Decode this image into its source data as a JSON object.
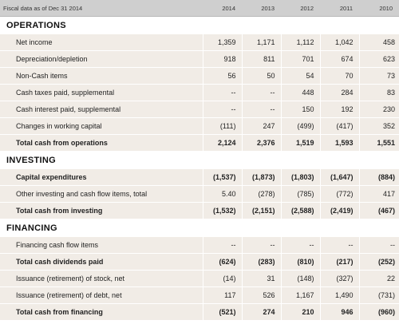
{
  "header": {
    "label": "Fiscal data as of Dec 31 2014",
    "years": [
      "2014",
      "2013",
      "2012",
      "2011",
      "2010"
    ]
  },
  "sections": [
    {
      "title": "OPERATIONS",
      "rows": [
        {
          "label": "Net income",
          "values": [
            "1,359",
            "1,171",
            "1,112",
            "1,042",
            "458"
          ],
          "total": false
        },
        {
          "label": "Depreciation/depletion",
          "values": [
            "918",
            "811",
            "701",
            "674",
            "623"
          ],
          "total": false
        },
        {
          "label": "Non-Cash items",
          "values": [
            "56",
            "50",
            "54",
            "70",
            "73"
          ],
          "total": false
        },
        {
          "label": "Cash taxes paid, supplemental",
          "values": [
            "--",
            "--",
            "448",
            "284",
            "83"
          ],
          "total": false
        },
        {
          "label": "Cash interest paid, supplemental",
          "values": [
            "--",
            "--",
            "150",
            "192",
            "230"
          ],
          "total": false
        },
        {
          "label": "Changes in working capital",
          "values": [
            "(111)",
            "247",
            "(499)",
            "(417)",
            "352"
          ],
          "total": false
        },
        {
          "label": "Total cash from operations",
          "values": [
            "2,124",
            "2,376",
            "1,519",
            "1,593",
            "1,551"
          ],
          "total": true
        }
      ]
    },
    {
      "title": "INVESTING",
      "rows": [
        {
          "label": "Capital expenditures",
          "values": [
            "(1,537)",
            "(1,873)",
            "(1,803)",
            "(1,647)",
            "(884)"
          ],
          "total": true
        },
        {
          "label": "Other investing and cash flow items, total",
          "values": [
            "5.40",
            "(278)",
            "(785)",
            "(772)",
            "417"
          ],
          "total": false
        },
        {
          "label": "Total cash from investing",
          "values": [
            "(1,532)",
            "(2,151)",
            "(2,588)",
            "(2,419)",
            "(467)"
          ],
          "total": true
        }
      ]
    },
    {
      "title": "FINANCING",
      "rows": [
        {
          "label": "Financing cash flow items",
          "values": [
            "--",
            "--",
            "--",
            "--",
            "--"
          ],
          "total": false
        },
        {
          "label": "Total cash dividends paid",
          "values": [
            "(624)",
            "(283)",
            "(810)",
            "(217)",
            "(252)"
          ],
          "total": true
        },
        {
          "label": "Issuance (retirement) of stock, net",
          "values": [
            "(14)",
            "31",
            "(148)",
            "(327)",
            "22"
          ],
          "total": false
        },
        {
          "label": "Issuance (retirement) of debt, net",
          "values": [
            "117",
            "526",
            "1,167",
            "1,490",
            "(731)"
          ],
          "total": false
        },
        {
          "label": "Total cash from financing",
          "values": [
            "(521)",
            "274",
            "210",
            "946",
            "(960)"
          ],
          "total": true
        }
      ]
    }
  ]
}
